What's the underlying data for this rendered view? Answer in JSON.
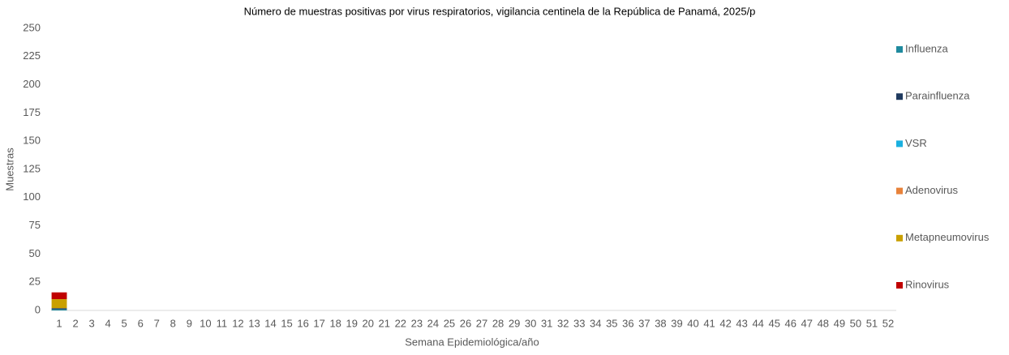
{
  "chart_data": {
    "type": "stacked-bar",
    "title": "Número de muestras positivas por virus respiratorios, vigilancia centinela de la República de Panamá, 2025/p",
    "x_label": "Semana Epidemiológica/año",
    "y_label": "Muestras",
    "categories": [
      1,
      2,
      3,
      4,
      5,
      6,
      7,
      8,
      9,
      10,
      11,
      12,
      13,
      14,
      15,
      16,
      17,
      18,
      19,
      20,
      21,
      22,
      23,
      24,
      25,
      26,
      27,
      28,
      29,
      30,
      31,
      32,
      33,
      34,
      35,
      36,
      37,
      38,
      39,
      40,
      41,
      42,
      43,
      44,
      45,
      46,
      47,
      48,
      49,
      50,
      51,
      52
    ],
    "series": [
      {
        "name": "Influenza",
        "color": "#1f8a9e",
        "values": [
          1,
          null,
          null,
          null,
          null,
          null,
          null,
          null,
          null,
          null,
          null,
          null,
          null,
          null,
          null,
          null,
          null,
          null,
          null,
          null,
          null,
          null,
          null,
          null,
          null,
          null,
          null,
          null,
          null,
          null,
          null,
          null,
          null,
          null,
          null,
          null,
          null,
          null,
          null,
          null,
          null,
          null,
          null,
          null,
          null,
          null,
          null,
          null,
          null,
          null,
          null,
          null
        ]
      },
      {
        "name": "Parainfluenza",
        "color": "#1f3a5f",
        "values": [
          1,
          null,
          null,
          null,
          null,
          null,
          null,
          null,
          null,
          null,
          null,
          null,
          null,
          null,
          null,
          null,
          null,
          null,
          null,
          null,
          null,
          null,
          null,
          null,
          null,
          null,
          null,
          null,
          null,
          null,
          null,
          null,
          null,
          null,
          null,
          null,
          null,
          null,
          null,
          null,
          null,
          null,
          null,
          null,
          null,
          null,
          null,
          null,
          null,
          null,
          null,
          null
        ]
      },
      {
        "name": "VSR",
        "color": "#1ab0e0",
        "values": [
          0,
          null,
          null,
          null,
          null,
          null,
          null,
          null,
          null,
          null,
          null,
          null,
          null,
          null,
          null,
          null,
          null,
          null,
          null,
          null,
          null,
          null,
          null,
          null,
          null,
          null,
          null,
          null,
          null,
          null,
          null,
          null,
          null,
          null,
          null,
          null,
          null,
          null,
          null,
          null,
          null,
          null,
          null,
          null,
          null,
          null,
          null,
          null,
          null,
          null,
          null,
          null
        ]
      },
      {
        "name": "Adenovirus",
        "color": "#e8823a",
        "values": [
          0,
          null,
          null,
          null,
          null,
          null,
          null,
          null,
          null,
          null,
          null,
          null,
          null,
          null,
          null,
          null,
          null,
          null,
          null,
          null,
          null,
          null,
          null,
          null,
          null,
          null,
          null,
          null,
          null,
          null,
          null,
          null,
          null,
          null,
          null,
          null,
          null,
          null,
          null,
          null,
          null,
          null,
          null,
          null,
          null,
          null,
          null,
          null,
          null,
          null,
          null,
          null
        ]
      },
      {
        "name": "Metapneumovirus",
        "color": "#c9a000",
        "values": [
          8,
          null,
          null,
          null,
          null,
          null,
          null,
          null,
          null,
          null,
          null,
          null,
          null,
          null,
          null,
          null,
          null,
          null,
          null,
          null,
          null,
          null,
          null,
          null,
          null,
          null,
          null,
          null,
          null,
          null,
          null,
          null,
          null,
          null,
          null,
          null,
          null,
          null,
          null,
          null,
          null,
          null,
          null,
          null,
          null,
          null,
          null,
          null,
          null,
          null,
          null,
          null
        ]
      },
      {
        "name": "Rinovirus",
        "color": "#c00000",
        "values": [
          6,
          null,
          null,
          null,
          null,
          null,
          null,
          null,
          null,
          null,
          null,
          null,
          null,
          null,
          null,
          null,
          null,
          null,
          null,
          null,
          null,
          null,
          null,
          null,
          null,
          null,
          null,
          null,
          null,
          null,
          null,
          null,
          null,
          null,
          null,
          null,
          null,
          null,
          null,
          null,
          null,
          null,
          null,
          null,
          null,
          null,
          null,
          null,
          null,
          null,
          null,
          null
        ]
      }
    ],
    "ylim": [
      0,
      250
    ],
    "yticks": [
      0,
      25,
      50,
      75,
      100,
      125,
      150,
      175,
      200,
      225,
      250
    ],
    "grid": false,
    "legend": "right"
  }
}
